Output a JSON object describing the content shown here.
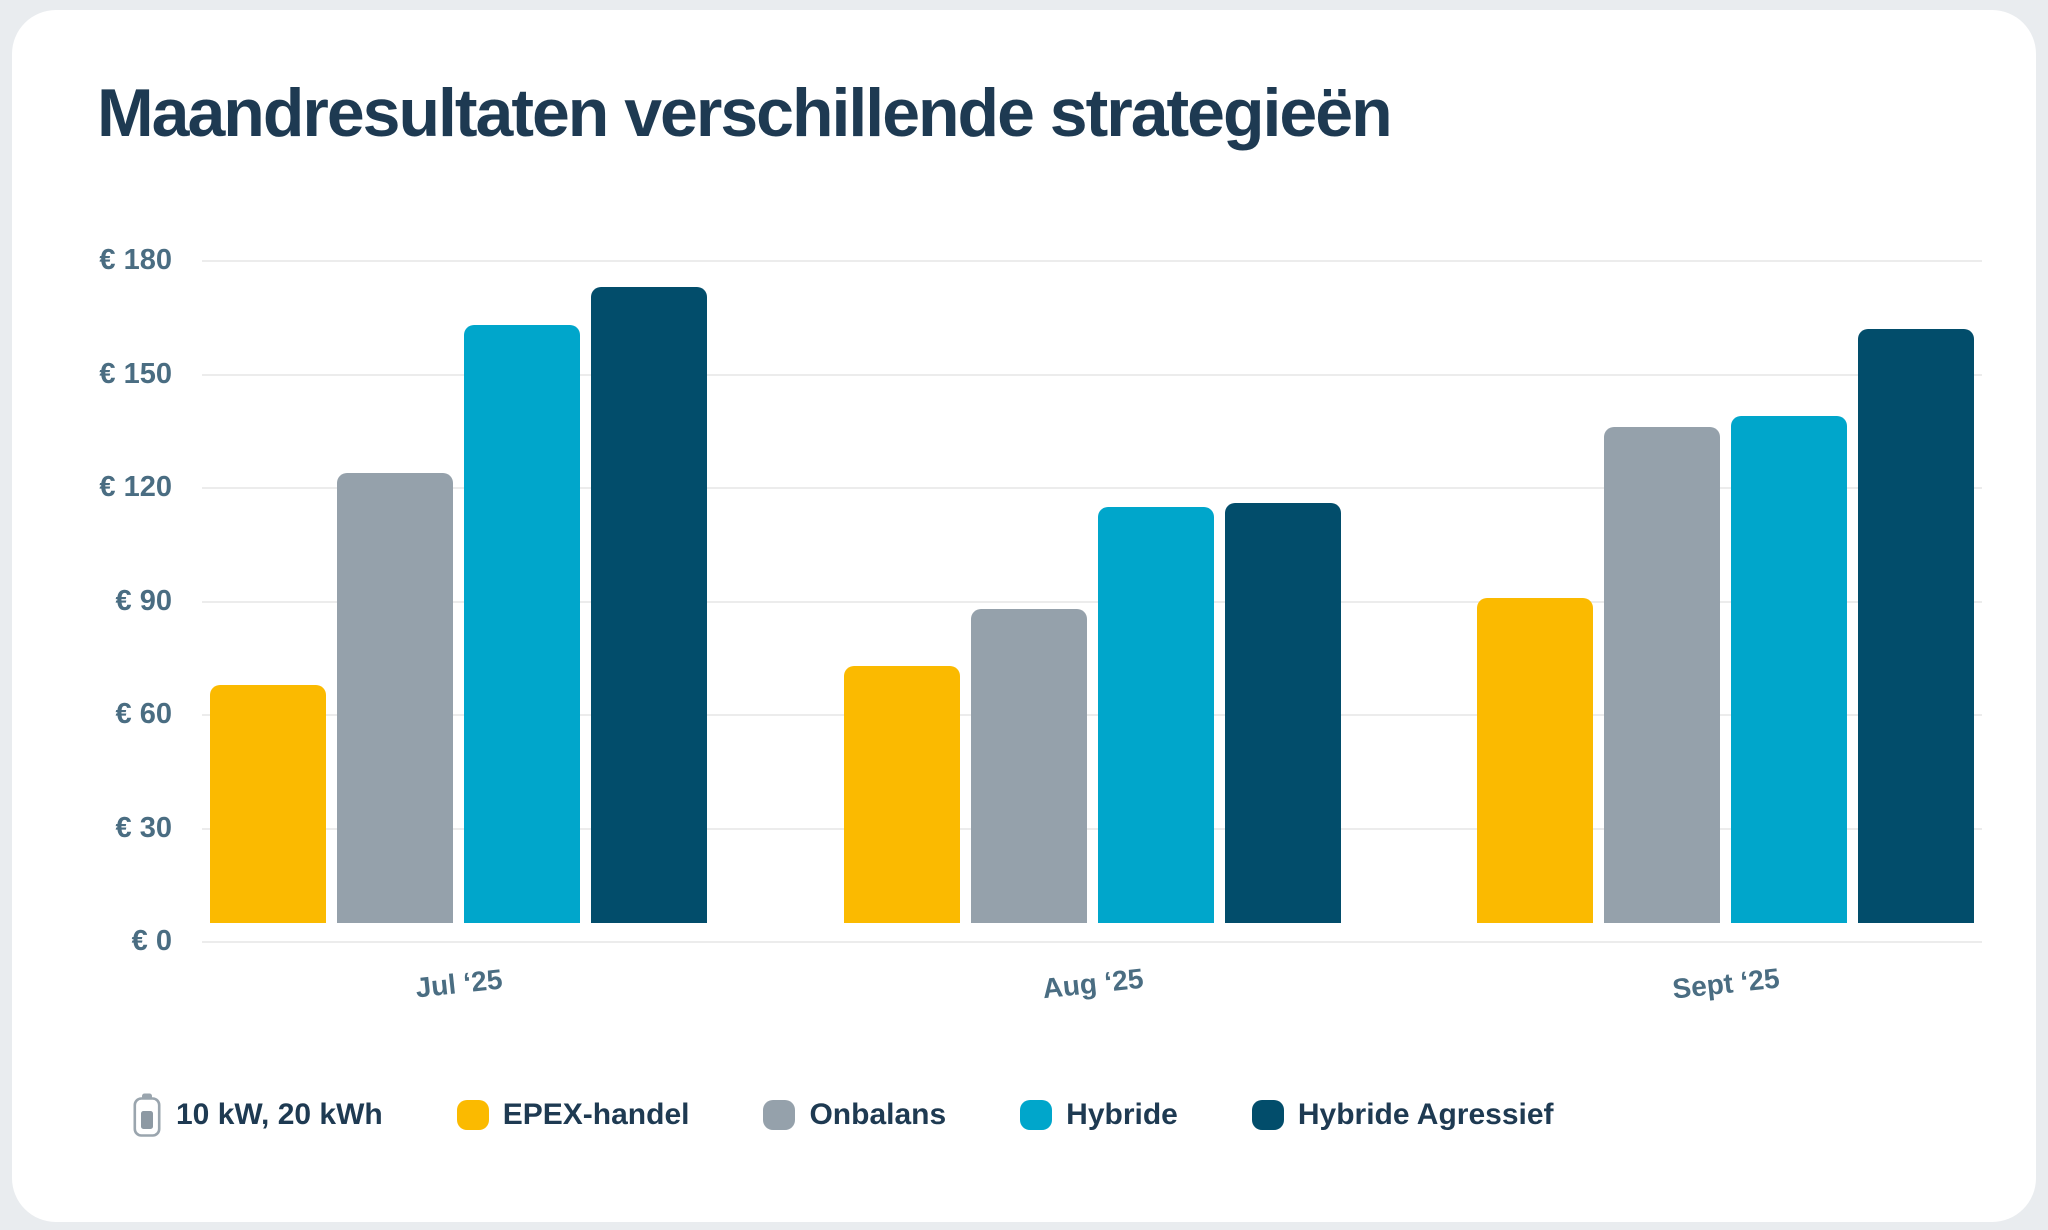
{
  "title": "Maandresultaten verschillende strategieën",
  "legend": {
    "battery_label": "10 kW, 20 kWh",
    "battery_icon": "battery-icon"
  },
  "colors": {
    "background": "#e9ecef",
    "card": "#ffffff",
    "title_text": "#1e3a52",
    "axis_text": "#4a6d82",
    "gridline": "#ececec",
    "battery_outline": "#9aa5ae",
    "battery_fill": "#8d99a3"
  },
  "chart_data": {
    "type": "bar",
    "categories": [
      "Jul ‘25",
      "Aug ‘25",
      "Sept ‘25"
    ],
    "series": [
      {
        "name": "EPEX-handel",
        "color": "#fbba00",
        "values": [
          63,
          68,
          86
        ]
      },
      {
        "name": "Onbalans",
        "color": "#95a1ab",
        "values": [
          119,
          83,
          131
        ]
      },
      {
        "name": "Hybride",
        "color": "#00a6cb",
        "values": [
          158,
          110,
          134
        ]
      },
      {
        "name": "Hybride Agressief",
        "color": "#024d6b",
        "values": [
          168,
          111,
          157
        ]
      }
    ],
    "y_tick_values": [
      0,
      30,
      60,
      90,
      120,
      150,
      180
    ],
    "y_tick_labels": [
      "€ 0",
      "€ 30",
      "€ 60",
      "€ 90",
      "€ 120",
      "€ 150",
      "€ 180"
    ],
    "ylim": [
      0,
      180
    ],
    "currency": "€",
    "grid": true,
    "legend_position": "bottom",
    "xlabel": "",
    "ylabel": ""
  }
}
